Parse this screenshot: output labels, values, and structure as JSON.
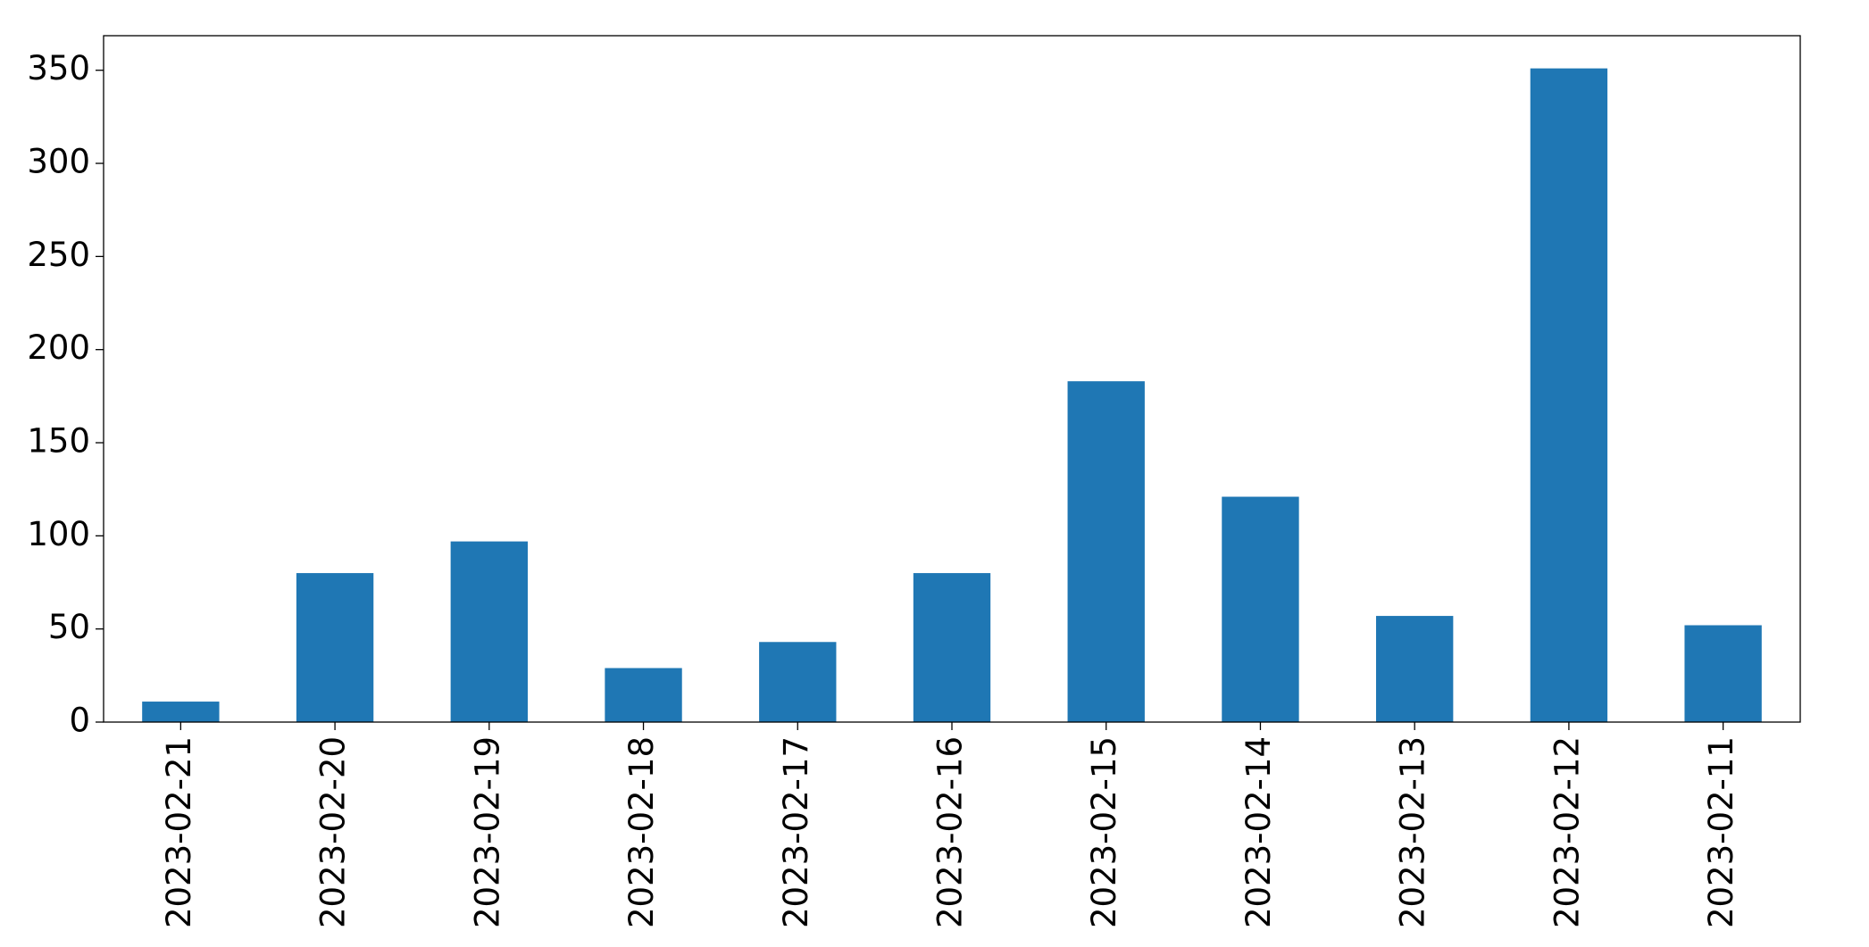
{
  "chart_data": {
    "type": "bar",
    "categories": [
      "2023-02-21",
      "2023-02-20",
      "2023-02-19",
      "2023-02-18",
      "2023-02-17",
      "2023-02-16",
      "2023-02-15",
      "2023-02-14",
      "2023-02-13",
      "2023-02-12",
      "2023-02-11"
    ],
    "values": [
      11,
      80,
      97,
      29,
      43,
      80,
      183,
      121,
      57,
      351,
      52
    ],
    "color": "#1f77b4",
    "ylim": [
      0,
      368.55
    ],
    "yticks": [
      0,
      50,
      100,
      150,
      200,
      250,
      300,
      350
    ],
    "grid": false
  }
}
